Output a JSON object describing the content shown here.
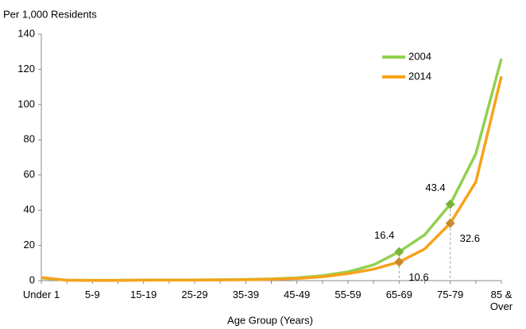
{
  "chart_data": {
    "type": "line",
    "y_label": "Per 1,000 Residents",
    "x_label": "Age Group (Years)",
    "categories": [
      "Under 1",
      null,
      "5-9",
      null,
      "15-19",
      null,
      "25-29",
      null,
      "35-39",
      null,
      "45-49",
      null,
      "55-59",
      null,
      "65-69",
      null,
      "75-79",
      null,
      "85 & Over"
    ],
    "series": [
      {
        "name": "2004",
        "color": "#92d050",
        "marker_color": "#78b43a",
        "values": [
          1.5,
          0.3,
          0.2,
          0.2,
          0.4,
          0.4,
          0.4,
          0.5,
          0.7,
          1.0,
          1.6,
          2.8,
          5,
          9,
          16.4,
          26,
          43.4,
          72,
          126
        ],
        "value_labels": [
          null,
          null,
          null,
          null,
          null,
          null,
          null,
          null,
          null,
          null,
          null,
          null,
          null,
          null,
          "16.4",
          null,
          "43.4",
          null,
          null
        ]
      },
      {
        "name": "2014",
        "color": "#f7a21b",
        "marker_color": "#c98a2e",
        "values": [
          1.8,
          0.2,
          0.1,
          0.1,
          0.3,
          0.3,
          0.3,
          0.4,
          0.5,
          0.8,
          1.2,
          2.2,
          4,
          6.5,
          10.6,
          18,
          32.6,
          56,
          116
        ],
        "value_labels": [
          null,
          null,
          null,
          null,
          null,
          null,
          null,
          null,
          null,
          null,
          null,
          null,
          null,
          null,
          "10.6",
          null,
          "32.6",
          null,
          null
        ]
      }
    ],
    "ylim": [
      0,
      140
    ],
    "yticks": [
      0,
      20,
      40,
      60,
      80,
      100,
      120,
      140
    ],
    "grid": false,
    "legend": "top-right"
  }
}
